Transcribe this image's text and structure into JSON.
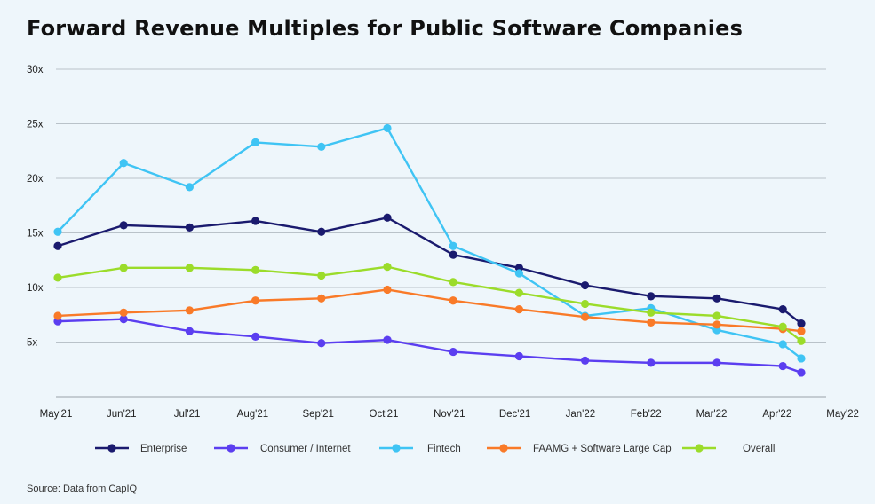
{
  "chart_data": {
    "type": "line",
    "title": "Forward Revenue Multiples for Public Software Companies",
    "source": "Source: Data from CapIQ",
    "x": [
      "May'21",
      "Jun'21",
      "Jul'21",
      "Aug'21",
      "Sep'21",
      "Oct'21",
      "Nov'21",
      "Dec'21",
      "Jan'22",
      "Feb'22",
      "Mar'22",
      "Apr'22",
      "May'22"
    ],
    "y_ticks": [
      "5x",
      "10x",
      "15x",
      "20x",
      "25x",
      "30x"
    ],
    "ylim": [
      0,
      30
    ],
    "grid": true,
    "legend_position": "bottom",
    "series": [
      {
        "name": "Enterprise",
        "color": "#1a1a6e",
        "values": [
          13.8,
          15.7,
          15.5,
          16.1,
          15.1,
          16.4,
          13.0,
          11.8,
          10.2,
          9.2,
          9.0,
          8.0,
          6.7
        ]
      },
      {
        "name": "Consumer / Internet",
        "color": "#5b3ef0",
        "values": [
          6.9,
          7.1,
          6.0,
          5.5,
          4.9,
          5.2,
          4.1,
          3.7,
          3.3,
          3.1,
          3.1,
          2.8,
          2.2
        ]
      },
      {
        "name": "Fintech",
        "color": "#3fc4f4",
        "values": [
          15.1,
          21.4,
          19.2,
          23.3,
          22.9,
          24.6,
          13.8,
          11.3,
          7.4,
          8.1,
          6.1,
          4.8,
          3.5
        ]
      },
      {
        "name": "FAAMG + Software Large Cap",
        "color": "#f97a28",
        "values": [
          7.4,
          7.7,
          7.9,
          8.8,
          9.0,
          9.8,
          8.8,
          8.0,
          7.3,
          6.8,
          6.6,
          6.2,
          6.0
        ]
      },
      {
        "name": "Overall",
        "color": "#9bdc2a",
        "values": [
          10.9,
          11.8,
          11.8,
          11.6,
          11.1,
          11.9,
          10.5,
          9.5,
          8.5,
          7.7,
          7.4,
          6.4,
          5.1
        ]
      }
    ]
  }
}
